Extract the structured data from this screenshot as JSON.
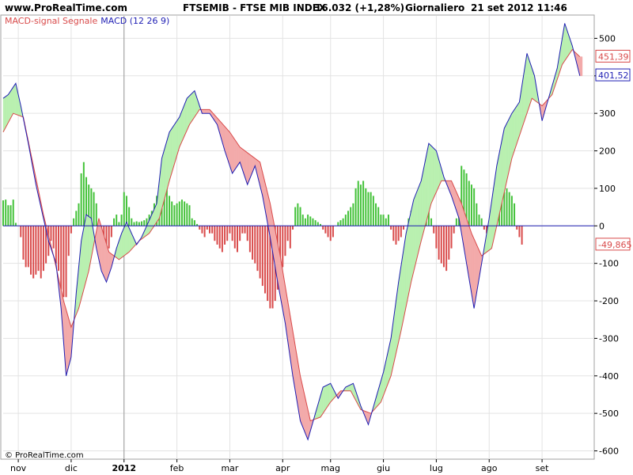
{
  "header": {
    "site": "www.ProRealTime.com",
    "instrument": "FTSEMIB - FTSE MIB INDEX",
    "quote": "16.032 (+1,28%)",
    "period": "Giornaliero",
    "datetime": "21 set 2012 11:46"
  },
  "copyright": "© ProRealTime.com",
  "colors": {
    "macd": "#1f1fb4",
    "signal": "#d94b4b",
    "fill_up": "#b9f0b0",
    "fill_down": "#f3aaaa",
    "hist_up": "#44c23a",
    "hist_down": "#d94b4b",
    "grid": "#e3e3e3",
    "zero_line": "#1f1fb4"
  },
  "chart_data": {
    "type": "line",
    "legend": {
      "signal_label": "MACD-signal Segnale",
      "macd_label": "MACD (12 26 9)",
      "placement": "top-left"
    },
    "y_ticks": [
      {
        "value": 500,
        "label": "500"
      },
      {
        "value": 400,
        "label": "400"
      },
      {
        "value": 300,
        "label": "300"
      },
      {
        "value": 200,
        "label": "200"
      },
      {
        "value": 100,
        "label": "100"
      },
      {
        "value": 0,
        "label": "0"
      },
      {
        "value": -100,
        "label": "-100"
      },
      {
        "value": -200,
        "label": "-200"
      },
      {
        "value": -300,
        "label": "-300"
      },
      {
        "value": -400,
        "label": "-400"
      },
      {
        "value": -500,
        "label": "-500"
      },
      {
        "value": -600,
        "label": "-600"
      }
    ],
    "ylim": [
      -620,
      560
    ],
    "x_range": [
      0,
      230
    ],
    "x_ticks": [
      {
        "index": 6,
        "label": "nov"
      },
      {
        "index": 27,
        "label": "dic"
      },
      {
        "index": 48,
        "label": "2012"
      },
      {
        "index": 69,
        "label": "feb"
      },
      {
        "index": 90,
        "label": "mar"
      },
      {
        "index": 111,
        "label": "apr"
      },
      {
        "index": 130,
        "label": "mag"
      },
      {
        "index": 151,
        "label": "giu"
      },
      {
        "index": 172,
        "label": "lug"
      },
      {
        "index": 193,
        "label": "ago"
      },
      {
        "index": 214,
        "label": "set"
      }
    ],
    "year_line_index": 48,
    "last_values": {
      "signal": {
        "value": 451.39,
        "label": "451,39"
      },
      "macd": {
        "value": 401.52,
        "label": "401,52"
      },
      "histogram": {
        "value": -49.865,
        "label": "-49,865"
      }
    },
    "macd_points": [
      [
        0,
        340
      ],
      [
        2,
        350
      ],
      [
        5,
        380
      ],
      [
        7,
        320
      ],
      [
        10,
        220
      ],
      [
        13,
        110
      ],
      [
        16,
        20
      ],
      [
        18,
        -40
      ],
      [
        21,
        -100
      ],
      [
        23,
        -220
      ],
      [
        25,
        -400
      ],
      [
        27,
        -350
      ],
      [
        29,
        -180
      ],
      [
        31,
        -40
      ],
      [
        33,
        30
      ],
      [
        35,
        20
      ],
      [
        37,
        -60
      ],
      [
        39,
        -120
      ],
      [
        41,
        -150
      ],
      [
        43,
        -110
      ],
      [
        45,
        -60
      ],
      [
        47,
        -20
      ],
      [
        49,
        10
      ],
      [
        51,
        -20
      ],
      [
        53,
        -50
      ],
      [
        55,
        -30
      ],
      [
        57,
        0
      ],
      [
        59,
        30
      ],
      [
        61,
        60
      ],
      [
        63,
        180
      ],
      [
        66,
        250
      ],
      [
        70,
        290
      ],
      [
        73,
        340
      ],
      [
        76,
        360
      ],
      [
        79,
        300
      ],
      [
        82,
        300
      ],
      [
        85,
        270
      ],
      [
        88,
        200
      ],
      [
        91,
        140
      ],
      [
        94,
        170
      ],
      [
        97,
        110
      ],
      [
        100,
        160
      ],
      [
        103,
        80
      ],
      [
        106,
        -30
      ],
      [
        109,
        -150
      ],
      [
        112,
        -260
      ],
      [
        115,
        -400
      ],
      [
        118,
        -520
      ],
      [
        121,
        -570
      ],
      [
        124,
        -500
      ],
      [
        127,
        -430
      ],
      [
        130,
        -420
      ],
      [
        133,
        -460
      ],
      [
        136,
        -430
      ],
      [
        139,
        -420
      ],
      [
        142,
        -480
      ],
      [
        145,
        -530
      ],
      [
        148,
        -460
      ],
      [
        151,
        -390
      ],
      [
        154,
        -300
      ],
      [
        157,
        -150
      ],
      [
        160,
        -20
      ],
      [
        163,
        70
      ],
      [
        166,
        120
      ],
      [
        169,
        220
      ],
      [
        172,
        200
      ],
      [
        175,
        130
      ],
      [
        178,
        80
      ],
      [
        181,
        20
      ],
      [
        184,
        -100
      ],
      [
        187,
        -220
      ],
      [
        190,
        -100
      ],
      [
        193,
        20
      ],
      [
        196,
        160
      ],
      [
        199,
        260
      ],
      [
        202,
        300
      ],
      [
        205,
        330
      ],
      [
        208,
        460
      ],
      [
        211,
        400
      ],
      [
        214,
        280
      ],
      [
        217,
        350
      ],
      [
        220,
        420
      ],
      [
        223,
        540
      ],
      [
        226,
        480
      ],
      [
        229,
        400
      ]
    ],
    "signal_points": [
      [
        0,
        250
      ],
      [
        4,
        300
      ],
      [
        8,
        290
      ],
      [
        12,
        160
      ],
      [
        16,
        30
      ],
      [
        20,
        -80
      ],
      [
        24,
        -200
      ],
      [
        27,
        -270
      ],
      [
        30,
        -220
      ],
      [
        34,
        -120
      ],
      [
        38,
        20
      ],
      [
        42,
        -70
      ],
      [
        46,
        -90
      ],
      [
        50,
        -70
      ],
      [
        54,
        -40
      ],
      [
        58,
        -20
      ],
      [
        62,
        20
      ],
      [
        66,
        120
      ],
      [
        70,
        210
      ],
      [
        74,
        270
      ],
      [
        78,
        310
      ],
      [
        82,
        310
      ],
      [
        86,
        280
      ],
      [
        90,
        250
      ],
      [
        94,
        210
      ],
      [
        98,
        190
      ],
      [
        102,
        170
      ],
      [
        106,
        60
      ],
      [
        110,
        -80
      ],
      [
        114,
        -240
      ],
      [
        118,
        -400
      ],
      [
        122,
        -520
      ],
      [
        126,
        -510
      ],
      [
        130,
        -470
      ],
      [
        134,
        -440
      ],
      [
        138,
        -440
      ],
      [
        142,
        -490
      ],
      [
        146,
        -500
      ],
      [
        150,
        -470
      ],
      [
        154,
        -400
      ],
      [
        158,
        -280
      ],
      [
        162,
        -150
      ],
      [
        166,
        -40
      ],
      [
        170,
        60
      ],
      [
        174,
        120
      ],
      [
        178,
        120
      ],
      [
        182,
        60
      ],
      [
        186,
        -20
      ],
      [
        190,
        -80
      ],
      [
        194,
        -60
      ],
      [
        198,
        60
      ],
      [
        202,
        180
      ],
      [
        206,
        260
      ],
      [
        210,
        340
      ],
      [
        214,
        320
      ],
      [
        218,
        350
      ],
      [
        222,
        430
      ],
      [
        226,
        470
      ],
      [
        229,
        451
      ]
    ],
    "histogram": [
      [
        0,
        68
      ],
      [
        1,
        70
      ],
      [
        2,
        55
      ],
      [
        3,
        55
      ],
      [
        4,
        70
      ],
      [
        5,
        8
      ],
      [
        7,
        -30
      ],
      [
        8,
        -90
      ],
      [
        9,
        -110
      ],
      [
        10,
        -110
      ],
      [
        11,
        -130
      ],
      [
        12,
        -140
      ],
      [
        13,
        -130
      ],
      [
        14,
        -120
      ],
      [
        15,
        -140
      ],
      [
        16,
        -120
      ],
      [
        17,
        -100
      ],
      [
        18,
        -80
      ],
      [
        19,
        -40
      ],
      [
        20,
        -60
      ],
      [
        21,
        -100
      ],
      [
        22,
        -120
      ],
      [
        23,
        -170
      ],
      [
        24,
        -190
      ],
      [
        25,
        -190
      ],
      [
        26,
        -80
      ],
      [
        27,
        -20
      ],
      [
        28,
        20
      ],
      [
        29,
        40
      ],
      [
        30,
        60
      ],
      [
        31,
        140
      ],
      [
        32,
        170
      ],
      [
        33,
        130
      ],
      [
        34,
        110
      ],
      [
        35,
        100
      ],
      [
        36,
        90
      ],
      [
        37,
        60
      ],
      [
        38,
        -10
      ],
      [
        39,
        -20
      ],
      [
        40,
        -50
      ],
      [
        41,
        -60
      ],
      [
        42,
        -60
      ],
      [
        43,
        -30
      ],
      [
        44,
        20
      ],
      [
        45,
        30
      ],
      [
        46,
        10
      ],
      [
        47,
        30
      ],
      [
        48,
        90
      ],
      [
        49,
        80
      ],
      [
        50,
        50
      ],
      [
        51,
        20
      ],
      [
        52,
        10
      ],
      [
        53,
        12
      ],
      [
        54,
        10
      ],
      [
        55,
        12
      ],
      [
        56,
        15
      ],
      [
        57,
        20
      ],
      [
        58,
        30
      ],
      [
        59,
        40
      ],
      [
        60,
        60
      ],
      [
        61,
        80
      ],
      [
        62,
        90
      ],
      [
        63,
        100
      ],
      [
        64,
        110
      ],
      [
        65,
        100
      ],
      [
        66,
        80
      ],
      [
        67,
        65
      ],
      [
        68,
        55
      ],
      [
        69,
        60
      ],
      [
        70,
        65
      ],
      [
        71,
        70
      ],
      [
        72,
        65
      ],
      [
        73,
        60
      ],
      [
        74,
        55
      ],
      [
        75,
        20
      ],
      [
        76,
        15
      ],
      [
        77,
        5
      ],
      [
        78,
        -10
      ],
      [
        79,
        -20
      ],
      [
        80,
        -30
      ],
      [
        81,
        -10
      ],
      [
        82,
        -20
      ],
      [
        83,
        -20
      ],
      [
        84,
        -40
      ],
      [
        85,
        -50
      ],
      [
        86,
        -60
      ],
      [
        87,
        -70
      ],
      [
        88,
        -50
      ],
      [
        89,
        -40
      ],
      [
        90,
        -20
      ],
      [
        91,
        -40
      ],
      [
        92,
        -60
      ],
      [
        93,
        -70
      ],
      [
        94,
        -40
      ],
      [
        95,
        -20
      ],
      [
        96,
        -20
      ],
      [
        97,
        -40
      ],
      [
        98,
        -70
      ],
      [
        99,
        -90
      ],
      [
        100,
        -100
      ],
      [
        101,
        -120
      ],
      [
        102,
        -140
      ],
      [
        103,
        -160
      ],
      [
        104,
        -180
      ],
      [
        105,
        -200
      ],
      [
        106,
        -220
      ],
      [
        107,
        -220
      ],
      [
        108,
        -200
      ],
      [
        109,
        -170
      ],
      [
        110,
        -130
      ],
      [
        111,
        -110
      ],
      [
        112,
        -80
      ],
      [
        113,
        -40
      ],
      [
        114,
        -60
      ],
      [
        115,
        -10
      ],
      [
        116,
        50
      ],
      [
        117,
        60
      ],
      [
        118,
        50
      ],
      [
        119,
        30
      ],
      [
        120,
        20
      ],
      [
        121,
        30
      ],
      [
        122,
        25
      ],
      [
        123,
        20
      ],
      [
        124,
        15
      ],
      [
        125,
        10
      ],
      [
        126,
        5
      ],
      [
        127,
        -10
      ],
      [
        128,
        -20
      ],
      [
        129,
        -30
      ],
      [
        130,
        -40
      ],
      [
        131,
        -30
      ],
      [
        133,
        10
      ],
      [
        134,
        15
      ],
      [
        135,
        20
      ],
      [
        136,
        30
      ],
      [
        137,
        40
      ],
      [
        138,
        50
      ],
      [
        139,
        60
      ],
      [
        140,
        100
      ],
      [
        141,
        120
      ],
      [
        142,
        110
      ],
      [
        143,
        120
      ],
      [
        144,
        100
      ],
      [
        145,
        90
      ],
      [
        146,
        90
      ],
      [
        147,
        80
      ],
      [
        148,
        60
      ],
      [
        149,
        50
      ],
      [
        150,
        30
      ],
      [
        151,
        30
      ],
      [
        152,
        20
      ],
      [
        153,
        30
      ],
      [
        154,
        -10
      ],
      [
        155,
        -40
      ],
      [
        156,
        -50
      ],
      [
        157,
        -40
      ],
      [
        158,
        -30
      ],
      [
        159,
        -10
      ],
      [
        161,
        20
      ],
      [
        162,
        40
      ],
      [
        163,
        60
      ],
      [
        164,
        80
      ],
      [
        165,
        95
      ],
      [
        166,
        115
      ],
      [
        167,
        120
      ],
      [
        168,
        100
      ],
      [
        169,
        60
      ],
      [
        170,
        20
      ],
      [
        171,
        -20
      ],
      [
        172,
        -60
      ],
      [
        173,
        -90
      ],
      [
        174,
        -100
      ],
      [
        175,
        -110
      ],
      [
        176,
        -120
      ],
      [
        177,
        -90
      ],
      [
        178,
        -60
      ],
      [
        179,
        -20
      ],
      [
        180,
        20
      ],
      [
        181,
        70
      ],
      [
        182,
        160
      ],
      [
        183,
        150
      ],
      [
        184,
        140
      ],
      [
        185,
        120
      ],
      [
        186,
        110
      ],
      [
        187,
        100
      ],
      [
        188,
        60
      ],
      [
        189,
        30
      ],
      [
        190,
        20
      ],
      [
        191,
        -10
      ],
      [
        192,
        -20
      ],
      [
        193,
        -30
      ],
      [
        194,
        -20
      ],
      [
        196,
        30
      ],
      [
        197,
        50
      ],
      [
        198,
        70
      ],
      [
        199,
        90
      ],
      [
        200,
        100
      ],
      [
        201,
        90
      ],
      [
        202,
        80
      ],
      [
        203,
        60
      ],
      [
        204,
        -10
      ],
      [
        205,
        -30
      ],
      [
        206,
        -50
      ]
    ]
  }
}
